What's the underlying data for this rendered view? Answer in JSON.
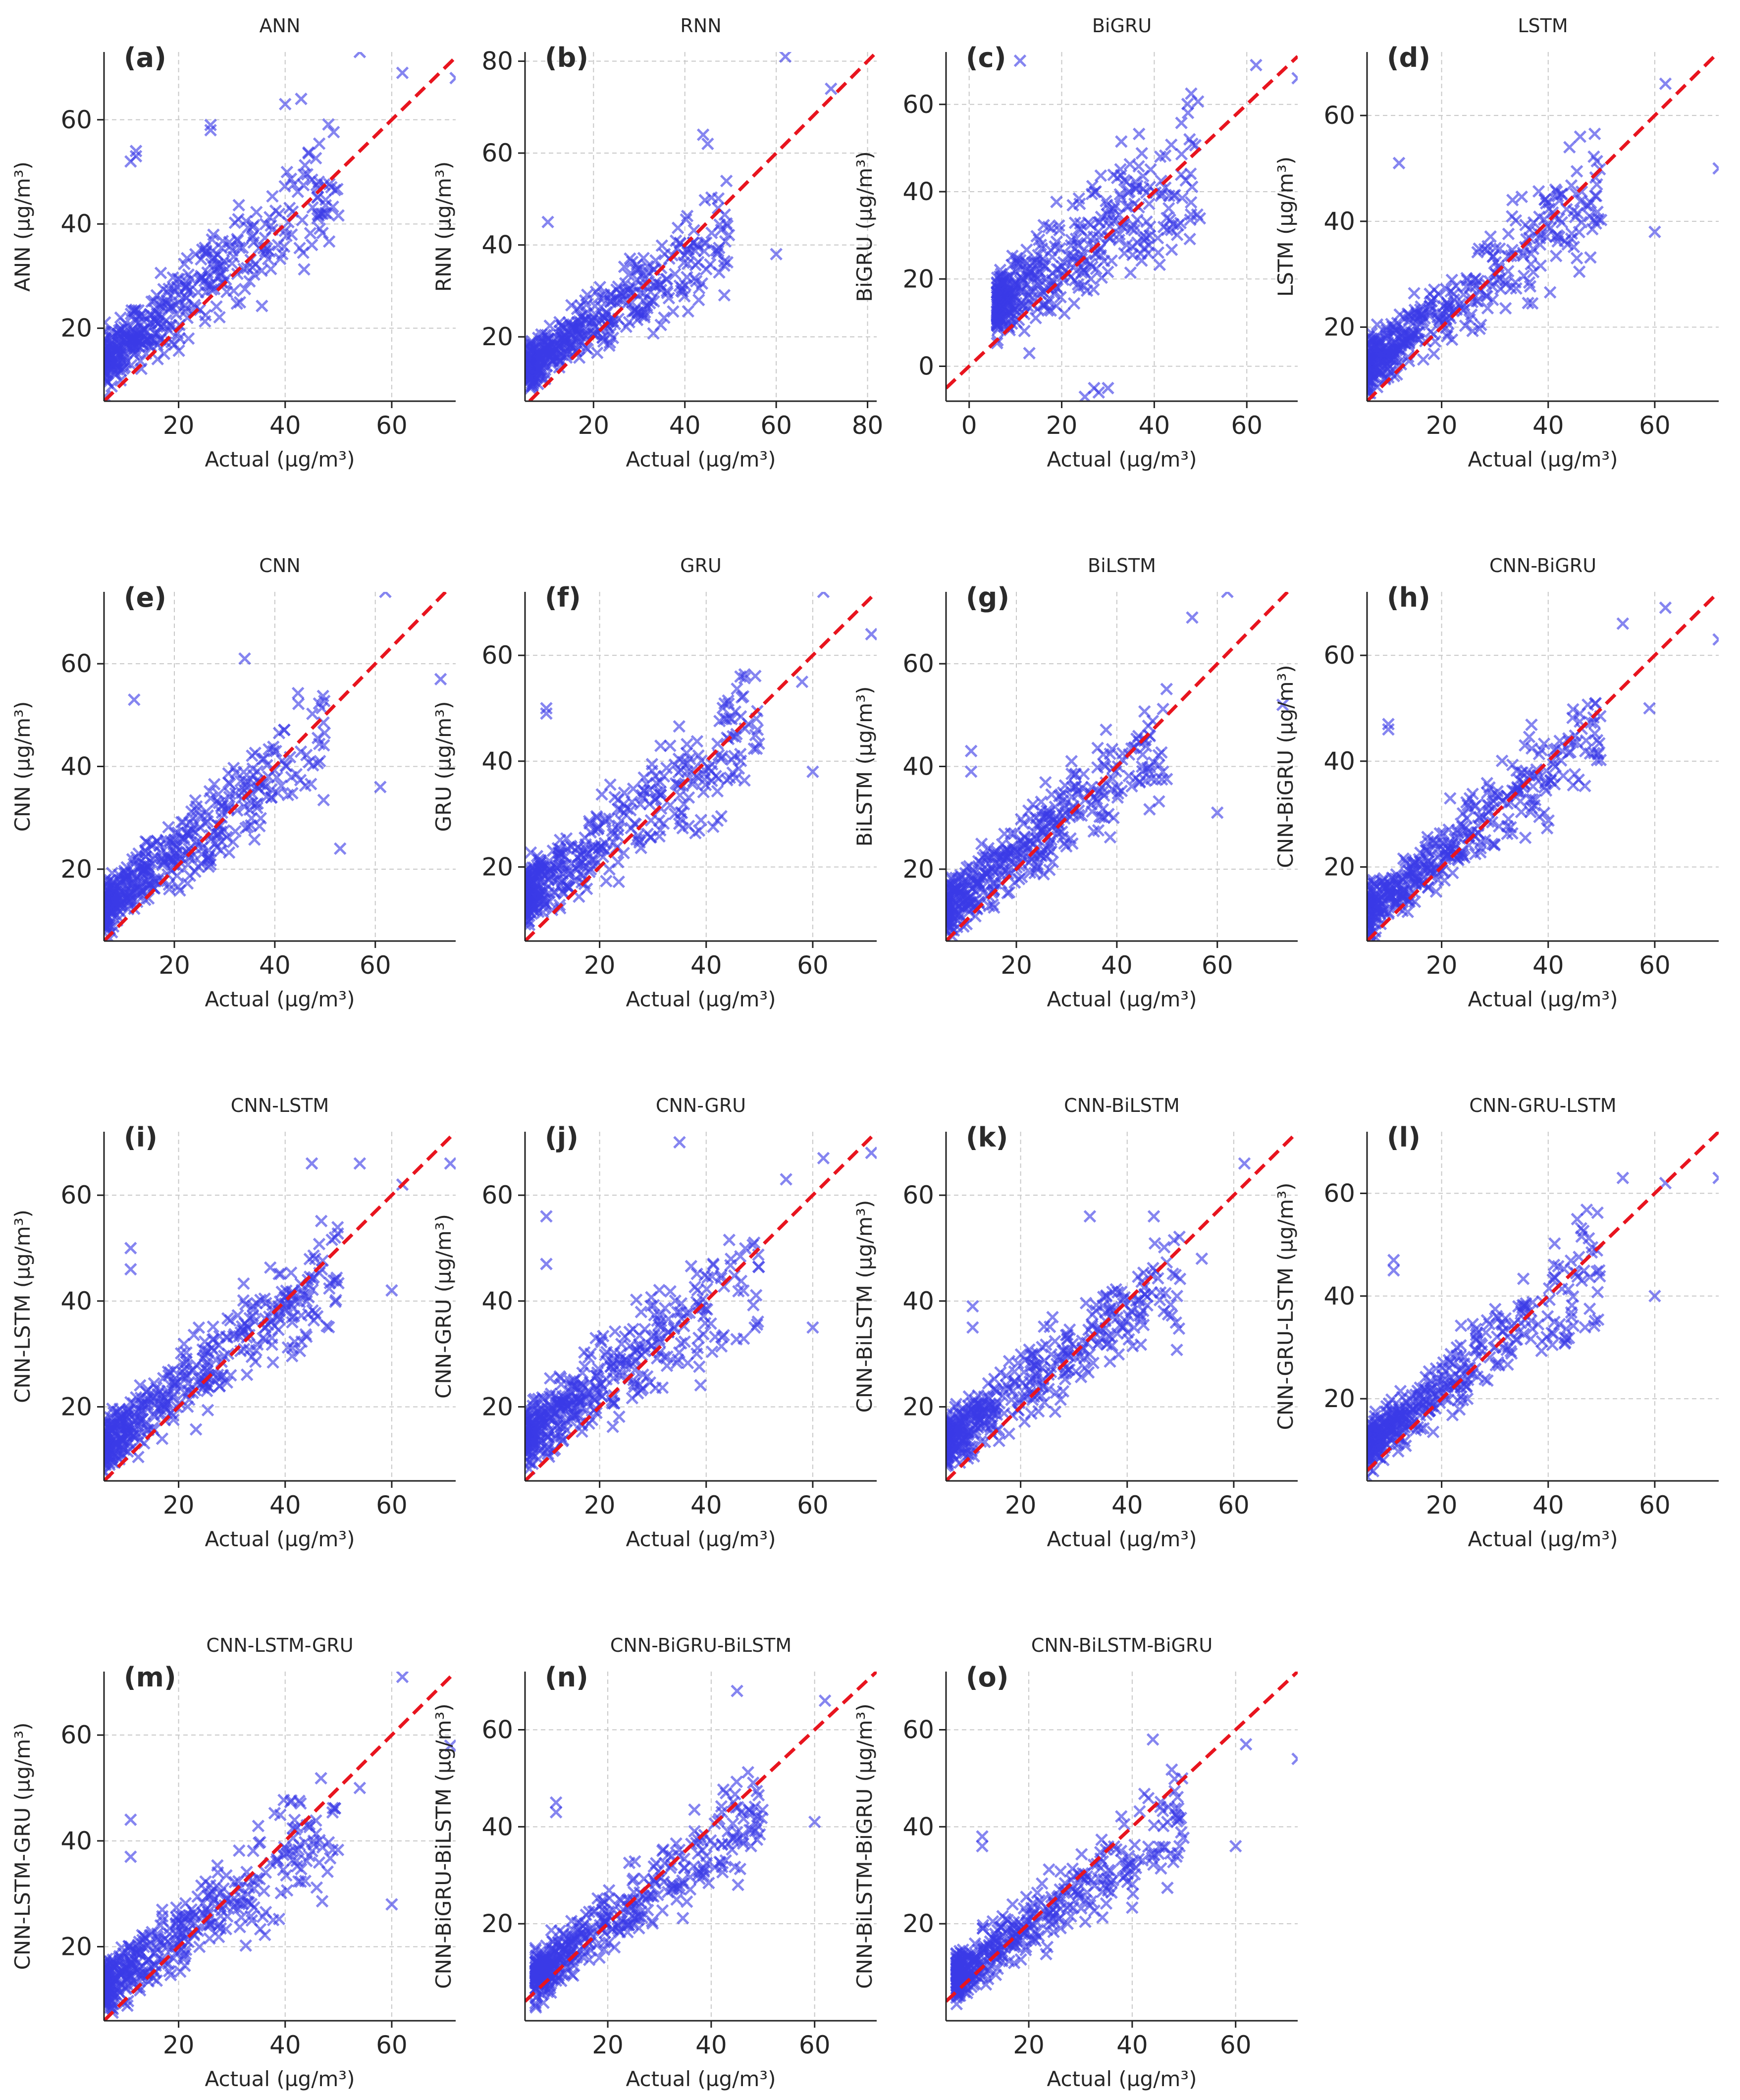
{
  "chart_data": [
    {
      "type": "scatter",
      "letter": "(a)",
      "title": "ANN",
      "xlabel": "Actual (µg/m³)",
      "ylabel": "ANN (µg/m³)",
      "xlim": [
        6,
        72
      ],
      "ylim": [
        6,
        73
      ],
      "xticks": [
        20,
        40,
        60
      ],
      "yticks": [
        20,
        40,
        60
      ],
      "seed": 11,
      "noise": 5.5,
      "gain": 0.78,
      "offset": 9,
      "x": [
        54,
        62,
        72,
        12,
        12,
        11,
        26,
        26,
        43,
        40
      ],
      "y": [
        73,
        69,
        68,
        54,
        53,
        52,
        59,
        58,
        64,
        63
      ]
    },
    {
      "type": "scatter",
      "letter": "(b)",
      "title": "RNN",
      "xlabel": "Actual (µg/m³)",
      "ylabel": "RNN (µg/m³)",
      "xlim": [
        5,
        82
      ],
      "ylim": [
        6,
        82
      ],
      "xticks": [
        20,
        40,
        60,
        80
      ],
      "yticks": [
        20,
        40,
        60,
        80
      ],
      "seed": 23,
      "noise": 5.0,
      "gain": 0.65,
      "offset": 10,
      "x": [
        62,
        72,
        10,
        60,
        44,
        45
      ],
      "y": [
        81,
        74,
        45,
        38,
        64,
        62
      ]
    },
    {
      "type": "scatter",
      "letter": "(c)",
      "title": "BiGRU",
      "xlabel": "Actual (µg/m³)",
      "ylabel": "BiGRU (µg/m³)",
      "xlim": [
        -5,
        71
      ],
      "ylim": [
        -8,
        72
      ],
      "xticks": [
        0,
        20,
        40,
        60
      ],
      "yticks": [
        0,
        20,
        40,
        60
      ],
      "seed": 37,
      "noise": 8.0,
      "gain": 0.75,
      "offset": 9,
      "x": [
        11,
        62,
        71,
        25,
        28,
        30,
        27,
        13
      ],
      "y": [
        70,
        69,
        66,
        -7,
        -6,
        -5,
        -5,
        3
      ]
    },
    {
      "type": "scatter",
      "letter": "(d)",
      "title": "LSTM",
      "xlabel": "Actual (µg/m³)",
      "ylabel": "LSTM (µg/m³)",
      "xlim": [
        6,
        72
      ],
      "ylim": [
        6,
        72
      ],
      "xticks": [
        20,
        40,
        60
      ],
      "yticks": [
        20,
        40,
        60
      ],
      "seed": 41,
      "noise": 5.0,
      "gain": 0.74,
      "offset": 8,
      "x": [
        62,
        72,
        12,
        60,
        46,
        44
      ],
      "y": [
        66,
        50,
        51,
        38,
        56,
        54
      ]
    },
    {
      "type": "scatter",
      "letter": "(e)",
      "title": "CNN",
      "xlabel": "Actual (µg/m³)",
      "ylabel": "CNN (µg/m³)",
      "xlim": [
        6,
        76
      ],
      "ylim": [
        6,
        74
      ],
      "xticks": [
        20,
        40,
        60
      ],
      "yticks": [
        20,
        40,
        60
      ],
      "seed": 53,
      "noise": 5.2,
      "gain": 0.76,
      "offset": 8,
      "x": [
        62,
        73,
        12,
        34,
        61,
        53
      ],
      "y": [
        74,
        57,
        53,
        61,
        36,
        24
      ]
    },
    {
      "type": "scatter",
      "letter": "(f)",
      "title": "GRU",
      "xlabel": "Actual (µg/m³)",
      "ylabel": "GRU (µg/m³)",
      "xlim": [
        6,
        72
      ],
      "ylim": [
        6,
        72
      ],
      "xticks": [
        20,
        40,
        60
      ],
      "yticks": [
        20,
        40,
        60
      ],
      "seed": 67,
      "noise": 5.8,
      "gain": 0.75,
      "offset": 10,
      "x": [
        62,
        71,
        10,
        10,
        60,
        58
      ],
      "y": [
        72,
        64,
        50,
        49,
        38,
        55
      ]
    },
    {
      "type": "scatter",
      "letter": "(g)",
      "title": "BiLSTM",
      "xlabel": "Actual (µg/m³)",
      "ylabel": "BiLSTM (µg/m³)",
      "xlim": [
        6,
        76
      ],
      "ylim": [
        6,
        74
      ],
      "xticks": [
        20,
        40,
        60
      ],
      "yticks": [
        20,
        40,
        60
      ],
      "seed": 71,
      "noise": 5.0,
      "gain": 0.74,
      "offset": 8,
      "x": [
        62,
        73,
        55,
        11,
        11,
        60
      ],
      "y": [
        74,
        52,
        69,
        43,
        39,
        31
      ]
    },
    {
      "type": "scatter",
      "letter": "(h)",
      "title": "CNN-BiGRU",
      "xlabel": "Actual (µg/m³)",
      "ylabel": "CNN-BiGRU (µg/m³)",
      "xlim": [
        6,
        72
      ],
      "ylim": [
        6,
        72
      ],
      "xticks": [
        20,
        40,
        60
      ],
      "yticks": [
        20,
        40,
        60
      ],
      "seed": 83,
      "noise": 4.8,
      "gain": 0.78,
      "offset": 7,
      "x": [
        62,
        72,
        54,
        10,
        10,
        59
      ],
      "y": [
        69,
        63,
        66,
        47,
        46,
        50
      ]
    },
    {
      "type": "scatter",
      "letter": "(i)",
      "title": "CNN-LSTM",
      "xlabel": "Actual (µg/m³)",
      "ylabel": "CNN-LSTM (µg/m³)",
      "xlim": [
        6,
        72
      ],
      "ylim": [
        6,
        72
      ],
      "xticks": [
        20,
        40,
        60
      ],
      "yticks": [
        20,
        40,
        60
      ],
      "seed": 97,
      "noise": 5.0,
      "gain": 0.76,
      "offset": 8,
      "x": [
        45,
        54,
        62,
        71,
        11,
        11,
        60
      ],
      "y": [
        66,
        66,
        62,
        66,
        50,
        46,
        42
      ]
    },
    {
      "type": "scatter",
      "letter": "(j)",
      "title": "CNN-GRU",
      "xlabel": "Actual (µg/m³)",
      "ylabel": "CNN-GRU (µg/m³)",
      "xlim": [
        6,
        72
      ],
      "ylim": [
        6,
        72
      ],
      "xticks": [
        20,
        40,
        60
      ],
      "yticks": [
        20,
        40,
        60
      ],
      "seed": 101,
      "noise": 5.8,
      "gain": 0.74,
      "offset": 10,
      "x": [
        35,
        62,
        71,
        10,
        10,
        60,
        55
      ],
      "y": [
        70,
        67,
        68,
        56,
        47,
        35,
        63
      ]
    },
    {
      "type": "scatter",
      "letter": "(k)",
      "title": "CNN-BiLSTM",
      "xlabel": "Actual (µg/m³)",
      "ylabel": "CNN-BiLSTM (µg/m³)",
      "xlim": [
        6,
        72
      ],
      "ylim": [
        6,
        72
      ],
      "xticks": [
        20,
        40,
        60
      ],
      "yticks": [
        20,
        40,
        60
      ],
      "seed": 113,
      "noise": 5.0,
      "gain": 0.72,
      "offset": 9,
      "x": [
        62,
        11,
        11,
        33,
        54,
        45
      ],
      "y": [
        66,
        39,
        35,
        56,
        48,
        56
      ]
    },
    {
      "type": "scatter",
      "letter": "(l)",
      "title": "CNN-GRU-LSTM",
      "xlabel": "Actual (µg/m³)",
      "ylabel": "CNN-GRU-LSTM (µg/m³)",
      "xlim": [
        6,
        72
      ],
      "ylim": [
        4,
        72
      ],
      "xticks": [
        20,
        40,
        60
      ],
      "yticks": [
        20,
        40,
        60
      ],
      "seed": 127,
      "noise": 4.8,
      "gain": 0.8,
      "offset": 6,
      "x": [
        62,
        72,
        11,
        11,
        54,
        60
      ],
      "y": [
        62,
        63,
        47,
        45,
        63,
        40
      ]
    },
    {
      "type": "scatter",
      "letter": "(m)",
      "title": "CNN-LSTM-GRU",
      "xlabel": "Actual (µg/m³)",
      "ylabel": "CNN-LSTM-GRU (µg/m³)",
      "xlim": [
        6,
        72
      ],
      "ylim": [
        6,
        72
      ],
      "xticks": [
        20,
        40,
        60
      ],
      "yticks": [
        20,
        40,
        60
      ],
      "seed": 131,
      "noise": 5.0,
      "gain": 0.7,
      "offset": 8,
      "x": [
        62,
        71,
        11,
        11,
        60,
        54
      ],
      "y": [
        71,
        58,
        44,
        37,
        28,
        50
      ]
    },
    {
      "type": "scatter",
      "letter": "(n)",
      "title": "CNN-BiGRU-BiLSTM",
      "xlabel": "Actual (µg/m³)",
      "ylabel": "CNN-BiGRU-BiLSTM (µg/m³)",
      "xlim": [
        4,
        72
      ],
      "ylim": [
        0,
        72
      ],
      "xticks": [
        20,
        40,
        60
      ],
      "yticks": [
        20,
        40,
        60
      ],
      "seed": 149,
      "noise": 5.0,
      "gain": 0.8,
      "offset": 4,
      "x": [
        62,
        45,
        10,
        10,
        60
      ],
      "y": [
        66,
        68,
        45,
        43,
        41
      ]
    },
    {
      "type": "scatter",
      "letter": "(o)",
      "title": "CNN-BiLSTM-BiGRU",
      "xlabel": "Actual (µg/m³)",
      "ylabel": "CNN-BiLSTM-BiGRU (µg/m³)",
      "xlim": [
        4,
        72
      ],
      "ylim": [
        0,
        72
      ],
      "xticks": [
        20,
        40,
        60
      ],
      "yticks": [
        20,
        40,
        60
      ],
      "seed": 157,
      "noise": 5.0,
      "gain": 0.72,
      "offset": 5,
      "x": [
        62,
        72,
        44,
        11,
        11,
        60
      ],
      "y": [
        57,
        54,
        58,
        38,
        36,
        36
      ]
    }
  ]
}
